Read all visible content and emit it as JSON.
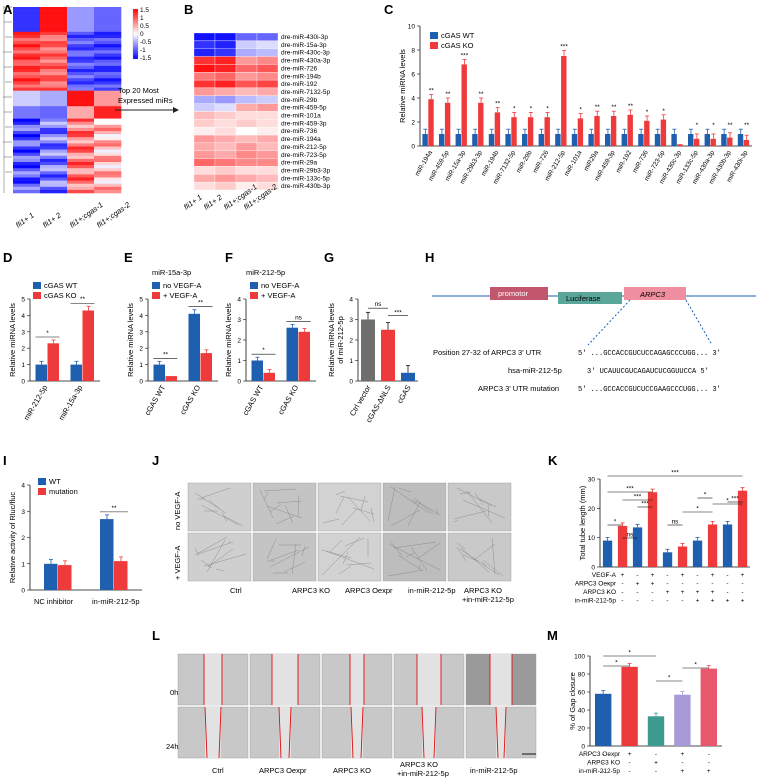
{
  "panel_labels": [
    "A",
    "B",
    "C",
    "D",
    "E",
    "F",
    "G",
    "H",
    "I",
    "J",
    "K",
    "L",
    "M"
  ],
  "colors": {
    "wt": "#1f5fb0",
    "ko": "#ee3a3a",
    "grey": "#6e6e6e",
    "teal": "#3d9a8e",
    "lavender": "#a89ad8",
    "pink": "#e8576e"
  },
  "panelA": {
    "samples": [
      "fli1+ 1",
      "fli1+ 2",
      "fli1+;cgas-1",
      "fli1+;cgas-2"
    ],
    "colorbar_ticks": [
      "1.5",
      "1",
      "0.5",
      "0",
      "-0.5",
      "-1",
      "-1.5"
    ]
  },
  "arrow_text": [
    "Top 20 Most",
    "Expressed miRs"
  ],
  "panelB": {
    "genes": [
      "dre-miR-430i-3p",
      "dre-miR-15a-3p",
      "dre-miR-430c-3p",
      "dre-miR-430a-3p",
      "dre-miR-726",
      "dre-miR-194b",
      "dre-miR-192",
      "dre-miR-7132-5p",
      "dre-miR-29b",
      "dre-miR-459-5p",
      "dre-miR-101a",
      "dre-miR-459-3p",
      "dre-miR-736",
      "dre-miR-194a",
      "dre-miR-212-5p",
      "dre-miR-723-5p",
      "dre-miR-29a",
      "dre-miR-29b3-3p",
      "dre-miR-133c-5p",
      "dre-miR-430b-3p"
    ],
    "samples": [
      "fli1+ 1",
      "fli1+ 2",
      "fli1+;cgas-1",
      "fli1+;cgas-2"
    ]
  },
  "chart_data": [
    {
      "panel": "C",
      "type": "bar",
      "ylabel": "Relative miRNA levels",
      "ylim": [
        0,
        10
      ],
      "yticks": [
        0,
        2,
        4,
        6,
        8,
        10
      ],
      "legend": [
        "cGAS WT",
        "cGAS KO"
      ],
      "legend_position": "top-left",
      "categories": [
        "miR-194a",
        "miR-459-5p",
        "miR-15a-3p",
        "miR-29b3-3p",
        "miR-194b",
        "miR-7132-5p",
        "miR-29b",
        "miR-726",
        "miR-212-5p",
        "miR-101a",
        "miR29a",
        "miR-459-3p",
        "miR-192",
        "miR-736",
        "miR-723-5p",
        "miR-430c-3p",
        "miR-133c-5p",
        "miR-430a-3p",
        "miR-430b-3p",
        "miR-430i-3p"
      ],
      "series": [
        {
          "name": "cGAS WT",
          "values": [
            1,
            1,
            1,
            1,
            1,
            1,
            1,
            1,
            1,
            1,
            1,
            1,
            1,
            1,
            1,
            1,
            1,
            1,
            1,
            1
          ]
        },
        {
          "name": "cGAS KO",
          "values": [
            3.9,
            3.6,
            6.8,
            3.6,
            2.8,
            2.4,
            2.4,
            2.4,
            7.5,
            2.3,
            2.5,
            2.5,
            2.6,
            2.1,
            2.2,
            0.15,
            0.6,
            0.6,
            0.7,
            0.5
          ]
        }
      ],
      "significance": [
        "**",
        "**",
        "***",
        "**",
        "**",
        "*",
        "*",
        "*",
        "***",
        "*",
        "**",
        "**",
        "**",
        "*",
        "*",
        "",
        "*",
        "*",
        "**",
        "**"
      ]
    },
    {
      "panel": "D",
      "type": "bar",
      "ylabel": "Relative miRNA levels",
      "ylim": [
        0,
        5
      ],
      "yticks": [
        0,
        1,
        2,
        3,
        4,
        5
      ],
      "legend": [
        "cGAS WT",
        "cGAS KO"
      ],
      "legend_position": "top-left",
      "categories": [
        "miR-212-5p",
        "miR-15a-3p"
      ],
      "series": [
        {
          "name": "cGAS WT",
          "values": [
            1.0,
            1.0
          ]
        },
        {
          "name": "cGAS KO",
          "values": [
            2.3,
            4.3
          ]
        }
      ],
      "significance": [
        "*",
        "**"
      ]
    },
    {
      "panel": "E",
      "type": "bar",
      "title": "miR-15a-3p",
      "ylabel": "Relative miRNA levels",
      "ylim": [
        0,
        5
      ],
      "yticks": [
        0,
        1,
        2,
        3,
        4,
        5
      ],
      "legend": [
        "no VEGF-A",
        "+ VEGF-A"
      ],
      "legend_position": "top-left",
      "categories": [
        "cGAS WT",
        "cGAS KO"
      ],
      "series": [
        {
          "name": "no VEGF-A",
          "values": [
            1.0,
            4.1
          ]
        },
        {
          "name": "+ VEGF-A",
          "values": [
            0.3,
            1.7
          ]
        }
      ],
      "significance": [
        "**",
        "**"
      ]
    },
    {
      "panel": "F",
      "type": "bar",
      "title": "miR-212-5p",
      "ylabel": "Relative miRNA levels",
      "ylim": [
        0,
        4
      ],
      "yticks": [
        0,
        1,
        2,
        3,
        4
      ],
      "legend": [
        "no VEGF-A",
        "+ VEGF-A"
      ],
      "legend_position": "top-left",
      "categories": [
        "cGAS WT",
        "cGAS KO"
      ],
      "series": [
        {
          "name": "no VEGF-A",
          "values": [
            1.0,
            2.6
          ]
        },
        {
          "name": "+ VEGF-A",
          "values": [
            0.4,
            2.4
          ]
        }
      ],
      "significance": [
        "*",
        "ns"
      ]
    },
    {
      "panel": "G",
      "type": "bar",
      "ylabel": "Relative miRNA levels of miR-212-5p",
      "ylim": [
        0,
        4
      ],
      "yticks": [
        0,
        1,
        2,
        3,
        4
      ],
      "categories": [
        "Ctrl vector",
        "cGAS-ΔNLS",
        "cGAS"
      ],
      "values": [
        3.0,
        2.5,
        0.4
      ],
      "significance_pairs": [
        {
          "pair": [
            0,
            1
          ],
          "label": "ns"
        },
        {
          "pair": [
            1,
            2
          ],
          "label": "***"
        }
      ]
    },
    {
      "panel": "I",
      "type": "bar",
      "ylabel": "Relative activity of Rluc/fluc",
      "ylim": [
        0,
        4
      ],
      "yticks": [
        0,
        1,
        2,
        3,
        4
      ],
      "legend": [
        "WT",
        "mutation"
      ],
      "legend_position": "top-left",
      "categories": [
        "NC inhibitor",
        "in-miR-212-5p"
      ],
      "series": [
        {
          "name": "WT",
          "values": [
            1.0,
            2.7
          ]
        },
        {
          "name": "mutation",
          "values": [
            0.95,
            1.1
          ]
        }
      ],
      "significance": [
        "",
        "**"
      ]
    },
    {
      "panel": "K",
      "type": "bar",
      "ylabel": "Total tube length (mm)",
      "ylim": [
        0,
        30
      ],
      "yticks": [
        0,
        10,
        20,
        30
      ],
      "values": [
        9,
        14,
        13.5,
        25.5,
        5,
        7,
        9,
        14.5,
        14.5,
        26
      ],
      "conditions": {
        "VEGF-A": [
          "-",
          "+",
          "-",
          "+",
          "-",
          "+",
          "-",
          "+",
          "-",
          "+"
        ],
        "ARPC3 Oexpr": [
          "-",
          "-",
          "+",
          "+",
          "-",
          "-",
          "-",
          "-",
          "-",
          "-"
        ],
        "ARPC3 KO": [
          "-",
          "-",
          "-",
          "-",
          "+",
          "+",
          "+",
          "+",
          "-",
          "-"
        ],
        "in-miR-212-5p": [
          "-",
          "-",
          "-",
          "-",
          "-",
          "-",
          "+",
          "+",
          "+",
          "+"
        ]
      },
      "significance_pairs": [
        {
          "pair": [
            0,
            1
          ],
          "label": "*"
        },
        {
          "pair": [
            1,
            2
          ],
          "label": "ns"
        },
        {
          "pair": [
            2,
            3
          ],
          "label": "***"
        },
        {
          "pair": [
            1,
            3
          ],
          "label": "***"
        },
        {
          "pair": [
            0,
            3
          ],
          "label": "***"
        },
        {
          "pair": [
            4,
            5
          ],
          "label": "ns"
        },
        {
          "pair": [
            5,
            7
          ],
          "label": "*"
        },
        {
          "pair": [
            6,
            7
          ],
          "label": "*"
        },
        {
          "pair": [
            7,
            9
          ],
          "label": "*"
        },
        {
          "pair": [
            8,
            9
          ],
          "label": "***"
        },
        {
          "pair": [
            0,
            9
          ],
          "label": "***"
        }
      ]
    },
    {
      "panel": "M",
      "type": "bar",
      "ylabel": "% of Gap closure",
      "ylim": [
        0,
        100
      ],
      "yticks": [
        0,
        20,
        40,
        60,
        80,
        100
      ],
      "values": [
        58,
        88,
        33,
        57,
        86
      ],
      "bar_colors": [
        "#1f5fb0",
        "#ee3a3a",
        "#3d9a8e",
        "#a89ad8",
        "#e8576e"
      ],
      "conditions": {
        "ARPC3 Oexpr": [
          "-",
          "+",
          "-",
          "+",
          "-"
        ],
        "ARPC3 KO": [
          "-",
          "-",
          "+",
          "-",
          "-"
        ],
        "in-miR-212-5p": [
          "-",
          "-",
          "-",
          "+",
          "+"
        ]
      },
      "significance_pairs": [
        {
          "pair": [
            0,
            1
          ],
          "label": "*"
        },
        {
          "pair": [
            0,
            2
          ],
          "label": "*"
        },
        {
          "pair": [
            2,
            3
          ],
          "label": "*"
        },
        {
          "pair": [
            3,
            4
          ],
          "label": "*"
        }
      ]
    }
  ],
  "panelH": {
    "promotor": "promotor",
    "luciferase": "Luciferase",
    "arpc3": "ARPC3",
    "rows": [
      {
        "label": "Position 27-32 of ARPC3 3' UTR",
        "seq": "5'  ...GCCACCGUCUCCAGAGCCCUGG...  3'"
      },
      {
        "label": "hsa-miR-212-5p",
        "seq": "3'  UCAUUCGUCAGAUCUCGGUUCCA  5'"
      },
      {
        "label": "ARPC3 3' UTR mutation",
        "seq": "5'  ...GCCACCGUCUCCGAAGCCCUGG...  3'"
      }
    ]
  },
  "panelJ": {
    "row_labels": [
      "no VEGF-A",
      "+ VEGF-A"
    ],
    "columns": [
      "Ctrl",
      "ARPC3 KO",
      "ARPC3 Oexpr",
      "in-miR-212-5p",
      "ARPC3 KO\n+in-miR-212-5p"
    ]
  },
  "panelL": {
    "row_labels": [
      "0h",
      "24h"
    ],
    "columns": [
      "Ctrl",
      "ARPC3 Oexpr",
      "ARPC3 KO",
      "ARPC3 KO\n+in-miR-212-5p",
      "in-miR-212-5p"
    ]
  }
}
